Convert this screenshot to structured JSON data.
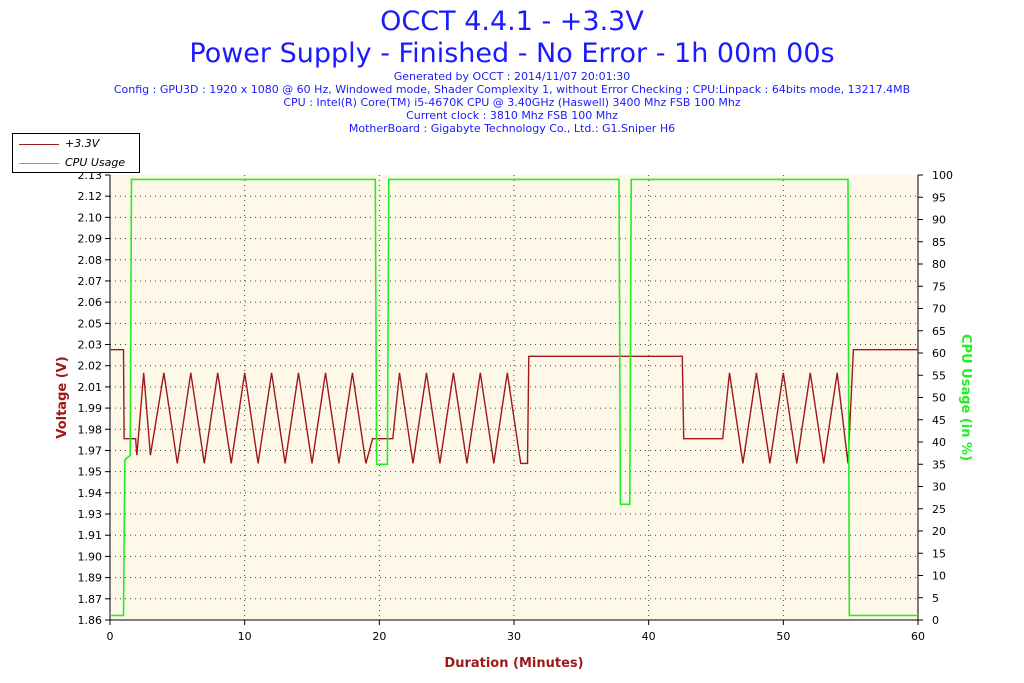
{
  "header": {
    "title": "OCCT 4.4.1 - +3.3V",
    "subtitle": "Power Supply - Finished - No Error - 1h 00m 00s",
    "generated": "Generated by OCCT : 2014/11/07 20:01:30",
    "config": "Config : GPU3D : 1920 x 1080 @ 60 Hz, Windowed mode, Shader Complexity 1, without Error Checking ; CPU:Linpack : 64bits mode, 13217.4MB",
    "cpu": "CPU : Intel(R) Core(TM) i5-4670K CPU @ 3.40GHz (Haswell) 3400 Mhz FSB 100 Mhz",
    "clock": "Current clock : 3810 Mhz FSB 100 Mhz",
    "motherboard": "MotherBoard : Gigabyte Technology Co., Ltd.: G1.Sniper H6"
  },
  "colors": {
    "voltage": "#a01818",
    "cpu": "#22ee22",
    "title": "#1a1aff",
    "plot_bg": "#fdf8e8"
  },
  "chart_data": {
    "type": "line",
    "grid": true,
    "legend_placement": "top-left",
    "xlabel": "Duration (Minutes)",
    "ylabel": "Voltage (V)",
    "y2label": "CPU Usage (in %)",
    "xlim": [
      0,
      60
    ],
    "ylim": [
      1.86,
      2.13
    ],
    "y2lim": [
      0,
      100
    ],
    "x_ticks": [
      "0",
      "10",
      "20",
      "30",
      "40",
      "50",
      "60"
    ],
    "y_ticks": [
      "1.86",
      "1.87",
      "1.89",
      "1.90",
      "1.91",
      "1.93",
      "1.94",
      "1.95",
      "1.97",
      "1.98",
      "1.99",
      "2.01",
      "2.02",
      "2.03",
      "2.05",
      "2.06",
      "2.07",
      "2.08",
      "2.09",
      "2.10",
      "2.12",
      "2.13"
    ],
    "y2_ticks": [
      "0",
      "5",
      "10",
      "15",
      "20",
      "25",
      "30",
      "35",
      "40",
      "45",
      "50",
      "55",
      "60",
      "65",
      "70",
      "75",
      "80",
      "85",
      "90",
      "95",
      "100"
    ],
    "series": [
      {
        "name": "+3.3V",
        "axis": "left",
        "points": [
          [
            0,
            2.024
          ],
          [
            1.0,
            2.024
          ],
          [
            1.05,
            1.97
          ],
          [
            1.9,
            1.97
          ],
          [
            2.0,
            1.96
          ],
          [
            2.5,
            2.01
          ],
          [
            3.0,
            1.96
          ],
          [
            4.0,
            2.01
          ],
          [
            5.0,
            1.955
          ],
          [
            6.0,
            2.01
          ],
          [
            7.0,
            1.955
          ],
          [
            8.0,
            2.01
          ],
          [
            9.0,
            1.955
          ],
          [
            10.0,
            2.01
          ],
          [
            11.0,
            1.955
          ],
          [
            12.0,
            2.01
          ],
          [
            13.0,
            1.955
          ],
          [
            14.0,
            2.01
          ],
          [
            15.0,
            1.955
          ],
          [
            16.0,
            2.01
          ],
          [
            17.0,
            1.955
          ],
          [
            18.0,
            2.01
          ],
          [
            19.0,
            1.955
          ],
          [
            19.5,
            1.97
          ],
          [
            21.0,
            1.97
          ],
          [
            21.5,
            2.01
          ],
          [
            22.5,
            1.955
          ],
          [
            23.5,
            2.01
          ],
          [
            24.5,
            1.955
          ],
          [
            25.5,
            2.01
          ],
          [
            26.5,
            1.955
          ],
          [
            27.5,
            2.01
          ],
          [
            28.5,
            1.955
          ],
          [
            29.5,
            2.01
          ],
          [
            30.5,
            1.955
          ],
          [
            31.0,
            1.955
          ],
          [
            31.1,
            2.02
          ],
          [
            42.5,
            2.02
          ],
          [
            42.6,
            1.97
          ],
          [
            45.5,
            1.97
          ],
          [
            46.0,
            2.01
          ],
          [
            47.0,
            1.955
          ],
          [
            48.0,
            2.01
          ],
          [
            49.0,
            1.955
          ],
          [
            50.0,
            2.01
          ],
          [
            51.0,
            1.955
          ],
          [
            52.0,
            2.01
          ],
          [
            53.0,
            1.955
          ],
          [
            54.0,
            2.01
          ],
          [
            54.8,
            1.955
          ],
          [
            55.2,
            2.024
          ],
          [
            60,
            2.024
          ]
        ]
      },
      {
        "name": "CPU Usage",
        "axis": "right",
        "points": [
          [
            0,
            1
          ],
          [
            1.0,
            1
          ],
          [
            1.1,
            36
          ],
          [
            1.5,
            37
          ],
          [
            1.6,
            99
          ],
          [
            19.7,
            99
          ],
          [
            19.8,
            35
          ],
          [
            20.6,
            35
          ],
          [
            20.7,
            99
          ],
          [
            37.8,
            99
          ],
          [
            37.9,
            26
          ],
          [
            38.6,
            26
          ],
          [
            38.7,
            99
          ],
          [
            54.8,
            99
          ],
          [
            54.9,
            1
          ],
          [
            60,
            1
          ]
        ]
      }
    ]
  }
}
